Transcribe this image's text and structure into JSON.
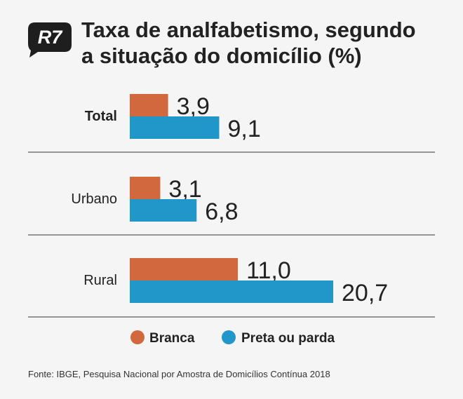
{
  "brand": {
    "logo_text": "R7",
    "logo_color": "#1e1e1e",
    "logo_text_color": "#ffffff"
  },
  "title_lines": [
    "Taxa de analfabetismo, segundo",
    "a situação do domicílio (%)"
  ],
  "source": "Fonte: IBGE, Pesquisa Nacional por Amostra de Domicílios Contínua 2018",
  "colors": {
    "branca": "#d2693e",
    "preta_parda": "#2197c9",
    "divider": "#333333"
  },
  "chart_data": {
    "type": "bar",
    "orientation": "horizontal",
    "categories": [
      "Total",
      "Urbano",
      "Rural"
    ],
    "category_bold": [
      true,
      false,
      false
    ],
    "series": [
      {
        "name": "Branca",
        "color": "#d2693e",
        "values": [
          3.9,
          3.1,
          11.0
        ],
        "labels": [
          "3,9",
          "3,1",
          "11,0"
        ]
      },
      {
        "name": "Preta ou parda",
        "color": "#2197c9",
        "values": [
          9.1,
          6.8,
          20.7
        ],
        "labels": [
          "9,1",
          "6,8",
          "20,7"
        ]
      }
    ],
    "xlim": [
      0,
      20.7
    ],
    "grid": false,
    "axes_visible": false,
    "legend_position": "bottom",
    "title": "Taxa de analfabetismo, segundo a situação do domicílio (%)"
  }
}
